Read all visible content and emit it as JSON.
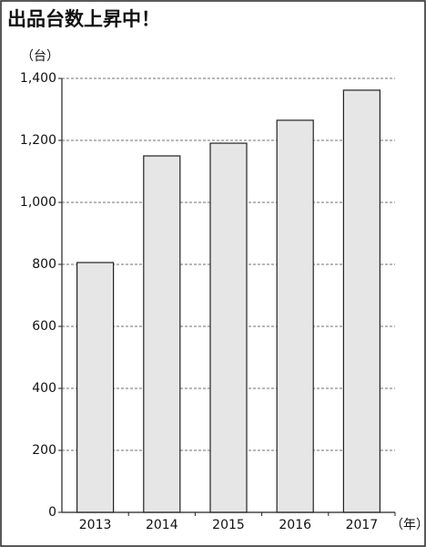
{
  "chart_data": {
    "type": "bar",
    "title": "出品台数上昇中！",
    "y_label": "（台）",
    "x_label": "（年）",
    "categories": [
      "2013",
      "2014",
      "2015",
      "2016",
      "2017"
    ],
    "values": [
      806,
      1150,
      1191,
      1265,
      1362
    ],
    "color": "#e6e6e6",
    "ylim": [
      0,
      1400
    ],
    "yticks": [
      0,
      200,
      400,
      600,
      800,
      {
        "value": 1000,
        "label": "1,000"
      },
      {
        "value": 1200,
        "label": "1,200"
      },
      {
        "value": 1400,
        "label": "1,400"
      }
    ],
    "grid": true
  }
}
